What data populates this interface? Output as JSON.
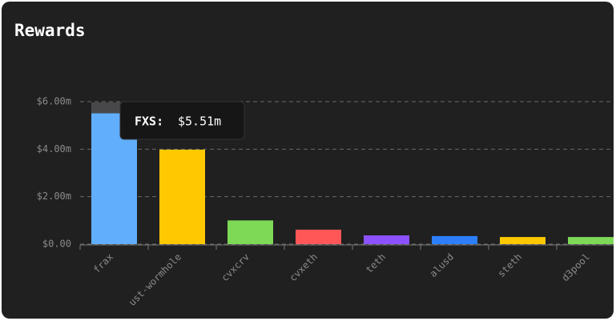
{
  "chart_data": {
    "type": "bar",
    "title": "Rewards",
    "categories": [
      "frax",
      "ust-wormhole",
      "cvxcrv",
      "cvxeth",
      "teth",
      "alusd",
      "steth",
      "d3pool"
    ],
    "series": [
      {
        "colors": [
          "#60aefc",
          "#ffc800",
          "#7ed957",
          "#ff5757",
          "#8c52ff",
          "#2d7ff9",
          "#ffc800",
          "#7ed957"
        ],
        "values": [
          5.51,
          3.98,
          1.0,
          0.61,
          0.37,
          0.34,
          0.3,
          0.3
        ]
      },
      {
        "color": "#48484a",
        "values": [
          0.46,
          null,
          null,
          null,
          null,
          null,
          null,
          null
        ]
      }
    ],
    "ylim": [
      0,
      6
    ],
    "yticks": [
      {
        "value": 0,
        "label": "$0.00"
      },
      {
        "value": 2,
        "label": "$2.00m"
      },
      {
        "value": 4,
        "label": "$4.00m"
      },
      {
        "value": 6,
        "label": "$6.00m"
      }
    ],
    "grid": true,
    "tooltip": {
      "name": "FXS:",
      "value": "$5.51m"
    }
  }
}
